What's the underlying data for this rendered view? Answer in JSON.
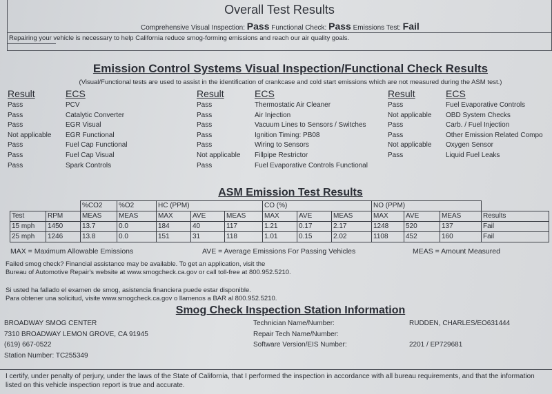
{
  "header": {
    "title": "Overall Test Results",
    "summary": [
      {
        "label": "Comprehensive Visual Inspection:",
        "value": "Pass"
      },
      {
        "label": "Functional Check:",
        "value": "Pass"
      },
      {
        "label": "Emissions Test:",
        "value": "Fail"
      }
    ],
    "notice": "Repairing your vehicle is necessary to help California reduce smog-forming emissions and reach our air quality goals."
  },
  "visual": {
    "title": "Emission Control Systems Visual Inspection/Functional Check Results",
    "subtitle": "(Visual/Functional tests are used to assist in the identification of crankcase and cold start emissions which are not measured during the ASM test.)",
    "col_result": "Result",
    "col_ecs": "ECS",
    "columns": [
      [
        {
          "result": "Pass",
          "ecs": "PCV"
        },
        {
          "result": "Pass",
          "ecs": "Catalytic Converter"
        },
        {
          "result": "Pass",
          "ecs": "EGR Visual"
        },
        {
          "result": "Not applicable",
          "ecs": "EGR Functional"
        },
        {
          "result": "Pass",
          "ecs": "Fuel Cap Functional"
        },
        {
          "result": "Pass",
          "ecs": "Fuel Cap Visual"
        },
        {
          "result": "Pass",
          "ecs": "Spark Controls"
        }
      ],
      [
        {
          "result": "Pass",
          "ecs": "Thermostatic Air Cleaner"
        },
        {
          "result": "Pass",
          "ecs": "Air Injection"
        },
        {
          "result": "Pass",
          "ecs": "Vacuum Lines to Sensors / Switches"
        },
        {
          "result": "Pass",
          "ecs": "Ignition Timing: PB08"
        },
        {
          "result": "Pass",
          "ecs": "Wiring to Sensors"
        },
        {
          "result": "Not applicable",
          "ecs": "Fillpipe Restrictor"
        },
        {
          "result": "Pass",
          "ecs": "Fuel Evaporative Controls Functional"
        }
      ],
      [
        {
          "result": "Pass",
          "ecs": "Fuel Evaporative Controls"
        },
        {
          "result": "Not applicable",
          "ecs": "OBD System Checks"
        },
        {
          "result": "Pass",
          "ecs": "Carb. / Fuel Injection"
        },
        {
          "result": "Pass",
          "ecs": "Other Emission Related Compo"
        },
        {
          "result": "Not applicable",
          "ecs": "Oxygen Sensor"
        },
        {
          "result": "Pass",
          "ecs": "Liquid Fuel Leaks"
        }
      ]
    ]
  },
  "asm": {
    "title": "ASM Emission Test Results",
    "groups": [
      "%CO2",
      "%O2",
      "HC (PPM)",
      "CO (%)",
      "NO (PPM)"
    ],
    "headers": [
      "Test",
      "RPM",
      "MEAS",
      "MEAS",
      "MAX",
      "AVE",
      "MEAS",
      "MAX",
      "AVE",
      "MEAS",
      "MAX",
      "AVE",
      "MEAS",
      "Results"
    ],
    "rows": [
      [
        "15 mph",
        "1450",
        "13.7",
        "0.0",
        "184",
        "40",
        "117",
        "1.21",
        "0.17",
        "2.17",
        "1248",
        "520",
        "137",
        "Fail"
      ],
      [
        "25 mph",
        "1246",
        "13.8",
        "0.0",
        "151",
        "31",
        "118",
        "1.01",
        "0.15",
        "2.02",
        "1108",
        "452",
        "160",
        "Fail"
      ]
    ],
    "legend": {
      "max": "MAX = Maximum Allowable Emissions",
      "ave": "AVE = Average Emissions For Passing Vehicles",
      "meas": "MEAS = Amount Measured"
    },
    "assistance_en": [
      "Failed smog check? Financial assistance may be available. To get an application, visit the",
      "Bureau of Automotive Repair's website at www.smogcheck.ca.gov or call toll-free at 800.952.5210."
    ],
    "assistance_es": [
      "Si usted ha fallado el examen de smog, asistencia financiera puede estar disponible.",
      "Para obtener una solicitud, visite www.smogcheck.ca.gov o llamenos a BAR al 800.952.5210."
    ]
  },
  "station": {
    "title": "Smog Check Inspection Station Information",
    "name": "BROADWAY SMOG CENTER",
    "address": "7310 BROADWAY  LEMON GROVE, CA  91945",
    "phone": "(619) 667-0522",
    "station_number": "Station Number: TC255349",
    "tech_name_label": "Technician Name/Number:",
    "tech_name_value": "RUDDEN, CHARLES/EO631444",
    "repair_tech_label": "Repair Tech Name/Number:",
    "software_label": "Software Version/EIS Number:",
    "software_value": "2201 / EP729681"
  },
  "certification": "I certify, under penalty of perjury, under the laws of the State of California, that I performed the inspection in accordance with all bureau requirements, and that the information listed on this vehicle inspection report is true and accurate."
}
